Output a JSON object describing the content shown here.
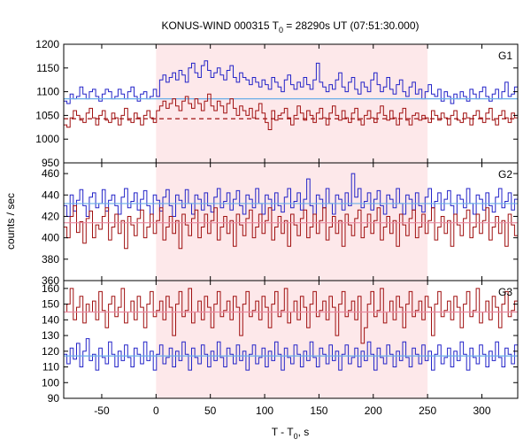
{
  "chart_data": {
    "type": "line",
    "title_main": "KONUS-WIND 000315 T",
    "title_sub": "0",
    "title_rest": " = 28290s UT (07:51:30.000)",
    "xlabel_main": "T - T",
    "xlabel_sub": "0",
    "xlabel_rest": ", s",
    "ylabel": "counts / sec",
    "xlim": [
      -85,
      333
    ],
    "x_ticks": [
      -50,
      0,
      50,
      100,
      150,
      200,
      250,
      300
    ],
    "highlight_interval": [
      0,
      250
    ],
    "highlight_color": "#fde8ea",
    "colors": {
      "blue": "#2323c8",
      "red": "#a01010",
      "blue_bg": "#6aaee8",
      "red_bg": "#e88aa0"
    },
    "step_seconds": 2.944,
    "panels": [
      {
        "label": "G1",
        "ylim": [
          950,
          1200
        ],
        "y_ticks": [
          950,
          1000,
          1050,
          1100,
          1150,
          1200
        ],
        "series": [
          {
            "color": "blue",
            "background": 1085,
            "values": [
              1080,
              1075,
              1095,
              1085,
              1090,
              1110,
              1095,
              1085,
              1100,
              1105,
              1090,
              1080,
              1095,
              1105,
              1100,
              1085,
              1090,
              1105,
              1095,
              1085,
              1100,
              1110,
              1090,
              1080,
              1095,
              1100,
              1085,
              1090,
              1105,
              1090,
              1125,
              1135,
              1120,
              1130,
              1140,
              1125,
              1145,
              1135,
              1120,
              1150,
              1160,
              1140,
              1130,
              1155,
              1165,
              1145,
              1130,
              1140,
              1150,
              1135,
              1125,
              1145,
              1155,
              1130,
              1120,
              1140,
              1130,
              1125,
              1115,
              1130,
              1120,
              1110,
              1125,
              1115,
              1105,
              1130,
              1120,
              1110,
              1100,
              1125,
              1135,
              1115,
              1105,
              1120,
              1110,
              1130,
              1115,
              1105,
              1125,
              1160,
              1120,
              1110,
              1100,
              1115,
              1105,
              1125,
              1140,
              1110,
              1100,
              1120,
              1130,
              1105,
              1095,
              1120,
              1110,
              1100,
              1125,
              1140,
              1115,
              1100,
              1110,
              1130,
              1105,
              1095,
              1115,
              1125,
              1100,
              1090,
              1110,
              1120,
              1095,
              1105,
              1085,
              1100,
              1115,
              1095,
              1090,
              1105,
              1080,
              1100,
              1090,
              1075,
              1095,
              1085,
              1100,
              1090,
              1080,
              1105,
              1095,
              1085,
              1100,
              1110,
              1090,
              1080,
              1095,
              1105,
              1085,
              1100,
              1120,
              1090,
              1095,
              1110,
              1085,
              1100,
              1090,
              1095,
              1110,
              1085,
              1080,
              1100
            ]
          },
          {
            "color": "red",
            "background": 1043,
            "values": [
              1030,
              1025,
              1045,
              1060,
              1050,
              1040,
              1035,
              1055,
              1065,
              1045,
              1030,
              1050,
              1060,
              1040,
              1035,
              1055,
              1045,
              1030,
              1050,
              1065,
              1040,
              1035,
              1055,
              1045,
              1030,
              1050,
              1060,
              1045,
              1035,
              1060,
              1070,
              1080,
              1065,
              1075,
              1085,
              1070,
              1060,
              1080,
              1090,
              1075,
              1065,
              1085,
              1075,
              1060,
              1080,
              1095,
              1070,
              1060,
              1080,
              1070,
              1055,
              1075,
              1085,
              1065,
              1050,
              1070,
              1060,
              1050,
              1065,
              1045,
              1060,
              1075,
              1055,
              1035,
              1020,
              1060,
              1040,
              1050,
              1055,
              1065,
              1045,
              1030,
              1050,
              1070,
              1055,
              1040,
              1060,
              1050,
              1035,
              1055,
              1065,
              1045,
              1030,
              1055,
              1070,
              1050,
              1040,
              1060,
              1045,
              1035,
              1055,
              1065,
              1040,
              1030,
              1050,
              1060,
              1045,
              1035,
              1055,
              1070,
              1050,
              1040,
              1060,
              1045,
              1030,
              1055,
              1065,
              1040,
              1030,
              1050,
              1055,
              1040,
              1050,
              1045,
              1035,
              1060,
              1050,
              1040,
              1055,
              1045,
              1030,
              1050,
              1060,
              1040,
              1035,
              1055,
              1045,
              1030,
              1050,
              1060,
              1045,
              1035,
              1055,
              1065,
              1040,
              1030,
              1050,
              1060,
              1045,
              1035,
              1055,
              1045,
              1040,
              1050,
              1035,
              1055,
              1045,
              1030,
              1050,
              1040
            ]
          }
        ]
      },
      {
        "label": "G2",
        "ylim": [
          360,
          470
        ],
        "y_ticks": [
          360,
          380,
          400,
          420,
          440,
          460
        ],
        "series": [
          {
            "color": "blue",
            "background": 432,
            "values": [
              430,
              420,
              440,
              425,
              435,
              445,
              430,
              420,
              438,
              442,
              428,
              432,
              445,
              425,
              435,
              440,
              430,
              422,
              438,
              446,
              428,
              434,
              442,
              426,
              436,
              444,
              430,
              422,
              440,
              435,
              425,
              438,
              445,
              430,
              420,
              440,
              435,
              428,
              445,
              432,
              422,
              440,
              436,
              426,
              442,
              430,
              424,
              438,
              446,
              428,
              434,
              442,
              426,
              436,
              444,
              430,
              422,
              440,
              436,
              428,
              446,
              432,
              422,
              440,
              436,
              426,
              442,
              430,
              424,
              438,
              446,
              428,
              434,
              442,
              426,
              436,
              455,
              430,
              422,
              440,
              436,
              428,
              446,
              432,
              422,
              440,
              436,
              426,
              442,
              430,
              460,
              438,
              446,
              428,
              434,
              442,
              426,
              436,
              444,
              430,
              422,
              440,
              436,
              428,
              446,
              432,
              422,
              440,
              436,
              426,
              442,
              430,
              424,
              438,
              446,
              428,
              434,
              442,
              426,
              436,
              444,
              430,
              422,
              440,
              436,
              428,
              446,
              432,
              422,
              440,
              436,
              426,
              442,
              430,
              424,
              438,
              446,
              428,
              434,
              442,
              426,
              436,
              444,
              430,
              422,
              440,
              436,
              428,
              446,
              432
            ]
          },
          {
            "color": "red",
            "background": 414,
            "values": [
              410,
              400,
              420,
              430,
              405,
              415,
              395,
              418,
              425,
              400,
              412,
              408,
              420,
              428,
              398,
              410,
              422,
              404,
              416,
              390,
              420,
              412,
              402,
              418,
              426,
              400,
              410,
              422,
              404,
              416,
              428,
              398,
              410,
              420,
              404,
              416,
              390,
              422,
              412,
              402,
              418,
              426,
              400,
              410,
              422,
              404,
              416,
              428,
              398,
              410,
              420,
              404,
              416,
              392,
              422,
              412,
              402,
              418,
              426,
              400,
              410,
              422,
              404,
              416,
              428,
              398,
              410,
              420,
              404,
              416,
              392,
              422,
              412,
              402,
              418,
              426,
              400,
              410,
              422,
              404,
              416,
              428,
              398,
              410,
              420,
              404,
              416,
              392,
              422,
              412,
              402,
              418,
              426,
              400,
              410,
              422,
              404,
              416,
              428,
              398,
              410,
              420,
              404,
              416,
              392,
              422,
              412,
              402,
              418,
              426,
              400,
              410,
              422,
              404,
              416,
              428,
              398,
              410,
              420,
              404,
              416,
              392,
              422,
              412,
              402,
              418,
              426,
              400,
              410,
              422,
              404,
              416,
              428,
              398,
              410,
              420,
              404,
              416,
              392,
              422,
              412,
              402,
              418,
              426,
              400,
              410,
              422,
              404,
              416,
              428
            ]
          }
        ]
      },
      {
        "label": "G3",
        "ylim": [
          90,
          165
        ],
        "y_ticks": [
          90,
          100,
          110,
          120,
          130,
          140,
          150,
          160
        ],
        "series": [
          {
            "color": "blue",
            "background": 117,
            "values": [
              118,
              112,
              122,
              115,
              125,
              110,
              120,
              128,
              114,
              118,
              108,
              122,
              116,
              112,
              126,
              118,
              110,
              120,
              114,
              124,
              116,
              110,
              122,
              118,
              112,
              126,
              114,
              120,
              108,
              118,
              124,
              112,
              116,
              122,
              110,
              120,
              114,
              126,
              118,
              108,
              122,
              116,
              112,
              124,
              118,
              110,
              120,
              114,
              126,
              116,
              110,
              122,
              118,
              112,
              124,
              114,
              120,
              108,
              118,
              124,
              112,
              116,
              122,
              110,
              120,
              114,
              126,
              118,
              108,
              122,
              116,
              112,
              124,
              118,
              110,
              120,
              114,
              126,
              116,
              110,
              122,
              118,
              112,
              124,
              114,
              120,
              108,
              118,
              124,
              112,
              116,
              122,
              110,
              120,
              114,
              126,
              118,
              108,
              122,
              116,
              112,
              124,
              118,
              110,
              120,
              114,
              126,
              116,
              110,
              122,
              118,
              112,
              124,
              114,
              120,
              108,
              118,
              124,
              112,
              116,
              122,
              110,
              120,
              114,
              126,
              118,
              108,
              122,
              116,
              112,
              124,
              118,
              110,
              120,
              114,
              126,
              116,
              110,
              122,
              118,
              112,
              124,
              114,
              120,
              108,
              118,
              124,
              112,
              116,
              122
            ]
          },
          {
            "color": "red",
            "background": 145,
            "values": [
              145,
              150,
              160,
              140,
              148,
              155,
              138,
              150,
              145,
              152,
              140,
              158,
              146,
              135,
              150,
              155,
              142,
              148,
              160,
              138,
              145,
              152,
              140,
              155,
              148,
              135,
              150,
              158,
              142,
              146,
              152,
              140,
              155,
              148,
              130,
              150,
              158,
              142,
              146,
              160,
              138,
              145,
              152,
              140,
              155,
              148,
              135,
              150,
              158,
              142,
              146,
              152,
              140,
              155,
              148,
              130,
              150,
              158,
              142,
              146,
              152,
              140,
              155,
              148,
              135,
              150,
              158,
              142,
              146,
              160,
              138,
              145,
              152,
              140,
              155,
              148,
              135,
              150,
              158,
              142,
              146,
              152,
              140,
              155,
              148,
              130,
              150,
              158,
              142,
              146,
              152,
              140,
              155,
              125,
              135,
              150,
              158,
              142,
              146,
              160,
              138,
              145,
              152,
              140,
              155,
              148,
              135,
              150,
              158,
              142,
              146,
              152,
              140,
              155,
              148,
              130,
              150,
              158,
              142,
              146,
              152,
              140,
              155,
              148,
              135,
              150,
              158,
              142,
              146,
              160,
              138,
              145,
              152,
              140,
              155,
              148,
              135,
              150,
              158,
              142,
              146,
              152,
              140,
              155,
              148,
              130,
              150,
              158,
              142,
              146
            ]
          }
        ]
      }
    ]
  }
}
